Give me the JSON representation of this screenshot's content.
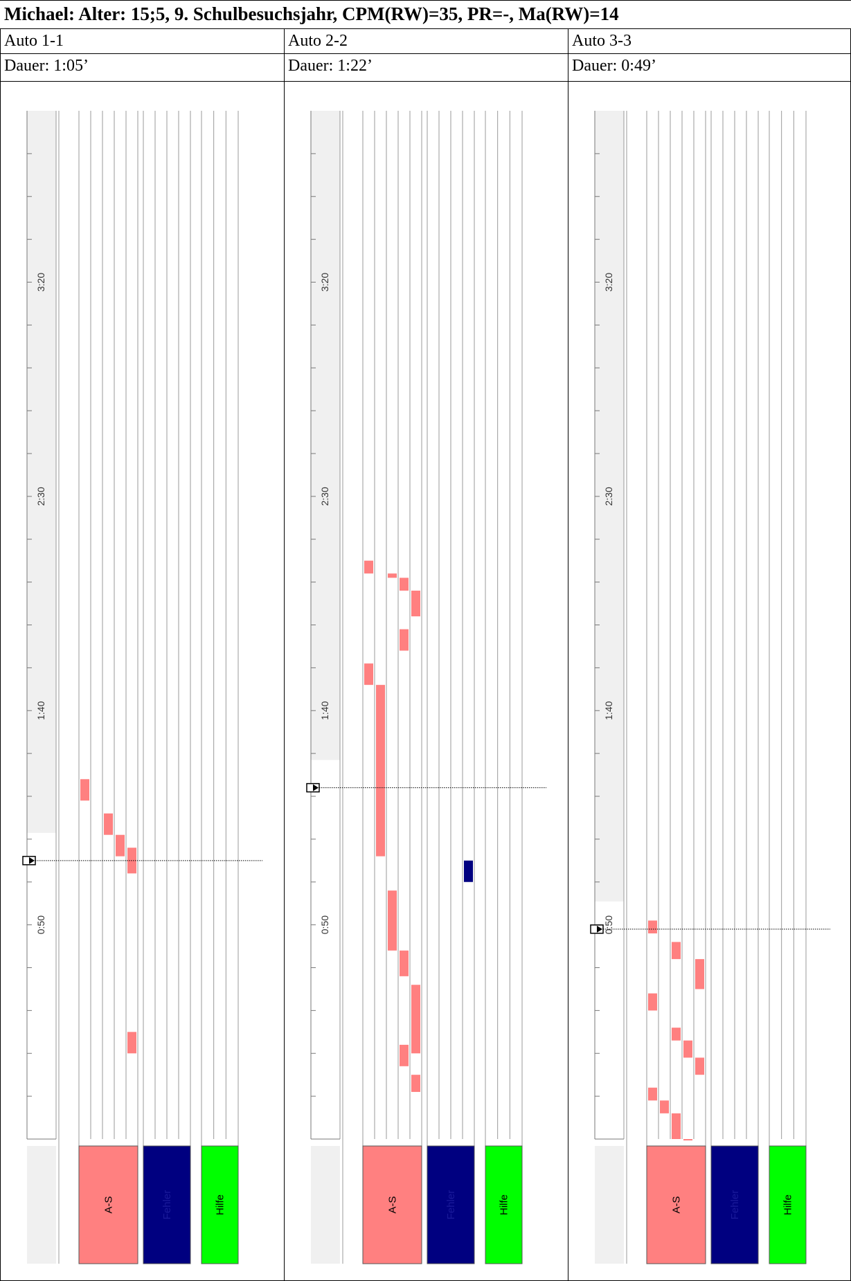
{
  "title": "Michael: Alter: 15;5, 9. Schulbesuchsjahr, CPM(RW)=35, PR=-, Ma(RW)=14",
  "colors": {
    "as": "#ff8080",
    "fehler": "#000080",
    "hilfe": "#00ff00",
    "shade": "#f0f0f0"
  },
  "legend": {
    "as": "A-S",
    "fehler": "Fehler",
    "hilfe": "Hilfe"
  },
  "chart_data": [
    {
      "type": "timeline",
      "label": "Auto 1-1",
      "duration": "Dauer: 1:05’",
      "tick_labels": [
        "3:20",
        "2:30",
        "1:40",
        "0:50"
      ],
      "ylim": [
        0,
        240
      ],
      "marker_time": 65,
      "as_columns": 5,
      "fehler_columns": 4,
      "hilfe_columns": 3,
      "events": [
        {
          "series": "as",
          "col": 0,
          "start": 79,
          "end": 84
        },
        {
          "series": "as",
          "col": 2,
          "start": 71,
          "end": 76
        },
        {
          "series": "as",
          "col": 3,
          "start": 66,
          "end": 71
        },
        {
          "series": "as",
          "col": 4,
          "start": 62,
          "end": 68
        },
        {
          "series": "as",
          "col": 4,
          "start": 20,
          "end": 25
        }
      ]
    },
    {
      "type": "timeline",
      "label": "Auto 2-2",
      "duration": "Dauer: 1:22’",
      "tick_labels": [
        "3:20",
        "2:30",
        "1:40",
        "0:50"
      ],
      "ylim": [
        0,
        240
      ],
      "marker_time": 82,
      "as_columns": 5,
      "fehler_columns": 4,
      "hilfe_columns": 3,
      "events": [
        {
          "series": "as",
          "col": 0,
          "start": 132,
          "end": 135
        },
        {
          "series": "as",
          "col": 2,
          "start": 131,
          "end": 132
        },
        {
          "series": "as",
          "col": 3,
          "start": 128,
          "end": 131
        },
        {
          "series": "as",
          "col": 4,
          "start": 122,
          "end": 128
        },
        {
          "series": "as",
          "col": 3,
          "start": 114,
          "end": 119
        },
        {
          "series": "as",
          "col": 0,
          "start": 106,
          "end": 111
        },
        {
          "series": "as",
          "col": 1,
          "start": 66,
          "end": 106
        },
        {
          "series": "as",
          "col": 2,
          "start": 44,
          "end": 58
        },
        {
          "series": "as",
          "col": 3,
          "start": 38,
          "end": 44
        },
        {
          "series": "as",
          "col": 4,
          "start": 20,
          "end": 36
        },
        {
          "series": "as",
          "col": 3,
          "start": 17,
          "end": 22
        },
        {
          "series": "as",
          "col": 4,
          "start": 11,
          "end": 15
        },
        {
          "series": "fehler",
          "col": 3,
          "start": 60,
          "end": 65
        }
      ]
    },
    {
      "type": "timeline",
      "label": "Auto 3-3",
      "duration": "Dauer: 0:49’",
      "tick_labels": [
        "3:20",
        "2:30",
        "1:40",
        "0:50"
      ],
      "ylim": [
        0,
        240
      ],
      "marker_time": 49,
      "as_columns": 5,
      "fehler_columns": 4,
      "hilfe_columns": 3,
      "events": [
        {
          "series": "as",
          "col": 0,
          "start": 48,
          "end": 51
        },
        {
          "series": "as",
          "col": 2,
          "start": 42,
          "end": 46
        },
        {
          "series": "as",
          "col": 4,
          "start": 35,
          "end": 42
        },
        {
          "series": "as",
          "col": 0,
          "start": 30,
          "end": 34
        },
        {
          "series": "as",
          "col": 2,
          "start": 23,
          "end": 26
        },
        {
          "series": "as",
          "col": 3,
          "start": 19,
          "end": 23
        },
        {
          "series": "as",
          "col": 4,
          "start": 15,
          "end": 19
        },
        {
          "series": "as",
          "col": 0,
          "start": 9,
          "end": 12
        },
        {
          "series": "as",
          "col": 1,
          "start": 6,
          "end": 9
        },
        {
          "series": "as",
          "col": 2,
          "start": 0,
          "end": 6
        },
        {
          "series": "as",
          "col": 3,
          "start": -3,
          "end": 0
        }
      ]
    }
  ]
}
